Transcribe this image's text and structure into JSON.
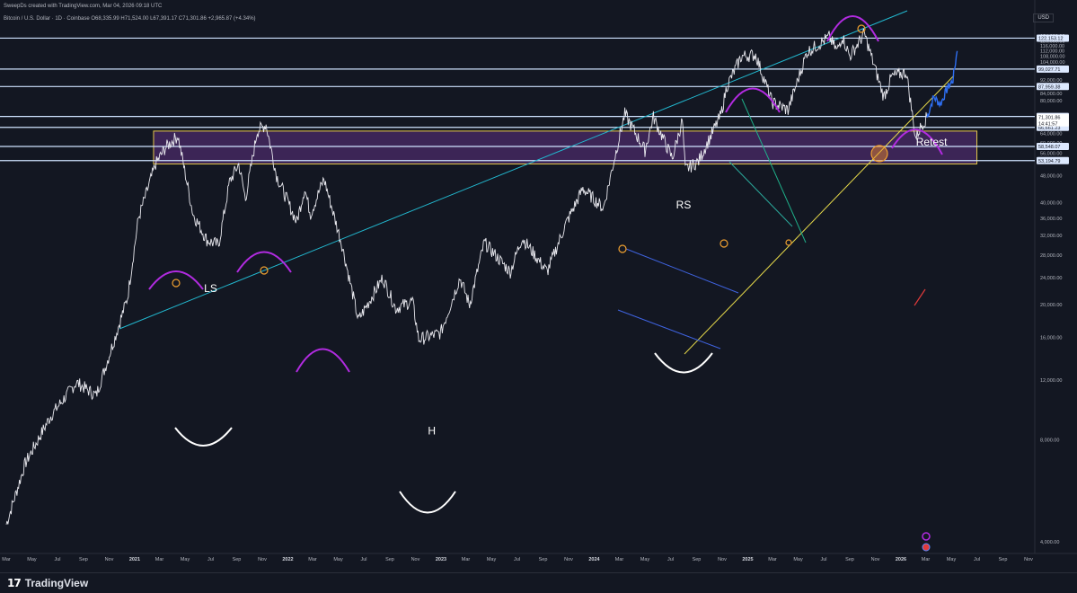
{
  "header": {
    "byline": "SweepDs created with TradingView.com, Mar 04, 2026 09:18 UTC",
    "symbol": "Bitcoin / U.S. Dollar · 1D · Coinbase",
    "ohlc": "O68,335.99  H71,524.00  L67,391.17  C71,301.86  +2,965.87 (+4.34%)"
  },
  "currency": "USD",
  "footer": {
    "brand": "TradingView"
  },
  "chart_data": {
    "type": "line",
    "title": "Bitcoin / U.S. Dollar · 1D · Coinbase",
    "xlabel": "",
    "ylabel": "",
    "y_scale": "log",
    "ylim": [
      3400,
      148000
    ],
    "x_ticks": [
      "Mar",
      "May",
      "Jul",
      "Sep",
      "Nov",
      "2021",
      "Mar",
      "May",
      "Jul",
      "Sep",
      "Nov",
      "2022",
      "Mar",
      "May",
      "Jul",
      "Sep",
      "Nov",
      "2023",
      "Mar",
      "May",
      "Jul",
      "Sep",
      "Nov",
      "2024",
      "Mar",
      "May",
      "Jul",
      "Sep",
      "Nov",
      "2025",
      "Mar",
      "May",
      "Jul",
      "Sep",
      "Nov",
      "2026",
      "Mar",
      "May",
      "Jul",
      "Sep",
      "Nov"
    ],
    "x_tick_dates": [
      "2020-03",
      "2020-05",
      "2020-07",
      "2020-09",
      "2020-11",
      "2021-01",
      "2021-03",
      "2021-05",
      "2021-07",
      "2021-09",
      "2021-11",
      "2022-01",
      "2022-03",
      "2022-05",
      "2022-07",
      "2022-09",
      "2022-11",
      "2023-01",
      "2023-03",
      "2023-05",
      "2023-07",
      "2023-09",
      "2023-11",
      "2024-01",
      "2024-03",
      "2024-05",
      "2024-07",
      "2024-09",
      "2024-11",
      "2025-01",
      "2025-03",
      "2025-05",
      "2025-07",
      "2025-09",
      "2025-11",
      "2026-01",
      "2026-03",
      "2026-05",
      "2026-07",
      "2026-09",
      "2026-11"
    ],
    "y_ticks": [
      4000,
      8000,
      12000,
      16000,
      20000,
      24000,
      28000,
      32000,
      36000,
      40000,
      48000,
      56000,
      60000,
      64000,
      68000,
      80000,
      84000,
      92000,
      104000,
      108000,
      112000,
      116000,
      120000,
      124000
    ],
    "y_tick_labels": [
      "4,000.00",
      "8,000.00",
      "12,000.00",
      "16,000.00",
      "20,000.00",
      "24,000.00",
      "28,000.00",
      "32,000.00",
      "36,000.00",
      "40,000.00",
      "48,000.00",
      "56,000.00",
      "60,000.00",
      "64,000.00",
      "68,000.00",
      "80,000.00",
      "84,000.00",
      "92,000.00",
      "104,000.00",
      "108,000.00",
      "112,000.00",
      "116,000.00",
      "120,000.00",
      "124,000.00"
    ],
    "price_series": [
      [
        "2020-03-01",
        4500
      ],
      [
        "2020-04-15",
        6800
      ],
      [
        "2020-06-15",
        9400
      ],
      [
        "2020-08-15",
        11800
      ],
      [
        "2020-10-01",
        10800
      ],
      [
        "2020-11-15",
        16000
      ],
      [
        "2020-12-15",
        21000
      ],
      [
        "2021-01-10",
        36000
      ],
      [
        "2021-02-20",
        52000
      ],
      [
        "2021-03-15",
        58000
      ],
      [
        "2021-04-14",
        63000
      ],
      [
        "2021-05-20",
        37000
      ],
      [
        "2021-06-22",
        31000
      ],
      [
        "2021-07-20",
        30000
      ],
      [
        "2021-08-15",
        46000
      ],
      [
        "2021-09-06",
        52000
      ],
      [
        "2021-09-22",
        41000
      ],
      [
        "2021-10-20",
        65000
      ],
      [
        "2021-11-10",
        68000
      ],
      [
        "2021-12-05",
        48000
      ],
      [
        "2022-01-22",
        35000
      ],
      [
        "2022-02-10",
        44000
      ],
      [
        "2022-02-24",
        37000
      ],
      [
        "2022-03-28",
        47000
      ],
      [
        "2022-05-10",
        30000
      ],
      [
        "2022-06-18",
        18000
      ],
      [
        "2022-08-15",
        24000
      ],
      [
        "2022-09-15",
        19500
      ],
      [
        "2022-10-25",
        20500
      ],
      [
        "2022-11-09",
        15800
      ],
      [
        "2022-12-31",
        16500
      ],
      [
        "2023-02-15",
        24000
      ],
      [
        "2023-03-10",
        20000
      ],
      [
        "2023-04-14",
        30500
      ],
      [
        "2023-06-15",
        25000
      ],
      [
        "2023-07-13",
        31500
      ],
      [
        "2023-09-11",
        25000
      ],
      [
        "2023-10-25",
        34500
      ],
      [
        "2023-12-05",
        44000
      ],
      [
        "2024-01-23",
        38500
      ],
      [
        "2024-02-28",
        61000
      ],
      [
        "2024-03-14",
        73000
      ],
      [
        "2024-05-01",
        57000
      ],
      [
        "2024-05-21",
        71500
      ],
      [
        "2024-07-05",
        54000
      ],
      [
        "2024-07-29",
        70000
      ],
      [
        "2024-08-05",
        50000
      ],
      [
        "2024-09-06",
        53000
      ],
      [
        "2024-10-29",
        72500
      ],
      [
        "2024-11-12",
        88000
      ],
      [
        "2024-12-17",
        108000
      ],
      [
        "2025-01-20",
        109000
      ],
      [
        "2025-02-28",
        79000
      ],
      [
        "2025-04-07",
        75000
      ],
      [
        "2025-05-22",
        111000
      ],
      [
        "2025-07-14",
        123000
      ],
      [
        "2025-08-02",
        112000
      ],
      [
        "2025-08-14",
        124000
      ],
      [
        "2025-09-01",
        108000
      ],
      [
        "2025-10-06",
        126000
      ],
      [
        "2025-11-21",
        82000
      ],
      [
        "2025-12-10",
        94000
      ],
      [
        "2026-01-14",
        97000
      ],
      [
        "2026-02-05",
        62000
      ],
      [
        "2026-02-20",
        68000
      ],
      [
        "2026-03-04",
        71301.86
      ]
    ],
    "projection_series": [
      [
        "2026-03-04",
        71301.86
      ],
      [
        "2026-03-20",
        82000
      ],
      [
        "2026-04-05",
        78000
      ],
      [
        "2026-04-22",
        87000
      ],
      [
        "2026-05-05",
        92000
      ],
      [
        "2026-05-15",
        112000
      ]
    ],
    "horizontal_levels": [
      {
        "price": 122153.12,
        "label": "122,153.12"
      },
      {
        "price": 99027.71,
        "label": "99,027.71"
      },
      {
        "price": 87959.38,
        "label": "87,959.38"
      },
      {
        "price": 71766.29,
        "label": "71,766.29"
      },
      {
        "price": 66661.23,
        "label": "66,661.23"
      },
      {
        "price": 58548.07,
        "label": "58,548.07"
      },
      {
        "price": 53194.79,
        "label": "53,194.79"
      }
    ],
    "price_tags": [
      {
        "price": 71301.86,
        "label": "71,301.86",
        "sub": "14:41:57",
        "color": "#ffffff",
        "text": "#131722"
      }
    ],
    "zone": {
      "from": "2021-02-15",
      "to": "2026-07-01",
      "low": 52000,
      "high": 65000
    },
    "annotations": [
      {
        "text": "LS",
        "date": "2021-07-01",
        "price": 21800
      },
      {
        "text": "H",
        "date": "2022-12-10",
        "price": 8300
      },
      {
        "text": "RS",
        "date": "2024-08-01",
        "price": 38500
      },
      {
        "text": "Retest",
        "date": "2026-03-15",
        "price": 59000
      }
    ]
  }
}
